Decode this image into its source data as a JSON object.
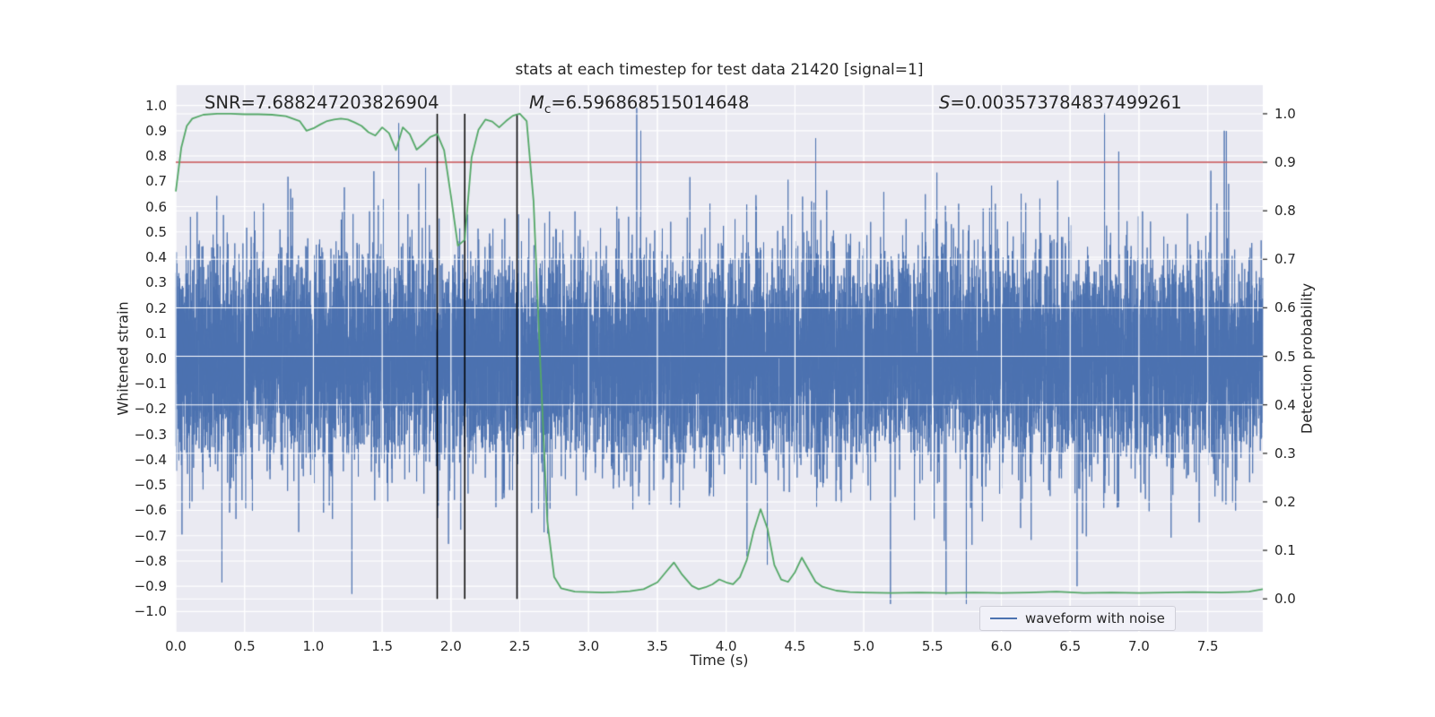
{
  "figure": {
    "annotations": {
      "snr": {
        "label": "SNR",
        "value": "=7.688247203826904"
      },
      "mc": {
        "label": "M",
        "sub": "c",
        "value": "=6.596868515014648"
      },
      "s": {
        "label": "S",
        "value": "=0.003573784837499261"
      }
    },
    "legend": {
      "items": [
        {
          "label": "waveform with noise",
          "color": "#4c72b0"
        }
      ]
    }
  },
  "chart_data": {
    "type": "line",
    "title": "stats at each timestep for test data 21420 [signal=1]",
    "xlabel": "Time (s)",
    "ylabel_left": "Whitened strain",
    "ylabel_right": "Detection probability",
    "xlim": [
      0,
      7.9
    ],
    "ylim_left": [
      -1.08,
      1.08
    ],
    "ylim_right": [
      -0.068,
      1.059
    ],
    "x_ticks": [
      0.0,
      0.5,
      1.0,
      1.5,
      2.0,
      2.5,
      3.0,
      3.5,
      4.0,
      4.5,
      5.0,
      5.5,
      6.0,
      6.5,
      7.0,
      7.5
    ],
    "y_ticks_left": [
      1.0,
      0.9,
      0.8,
      0.7,
      0.6,
      0.5,
      0.4,
      0.3,
      0.2,
      0.1,
      0.0,
      -0.1,
      -0.2,
      -0.3,
      -0.4,
      -0.5,
      -0.6,
      -0.7,
      -0.8,
      -0.9,
      -1.0
    ],
    "y_ticks_right": [
      1.0,
      0.9,
      0.8,
      0.7,
      0.6,
      0.5,
      0.4,
      0.3,
      0.2,
      0.1,
      0.0
    ],
    "grid": true,
    "plot_bg": "#eaeaf2",
    "grid_color": "#ffffff",
    "series": [
      {
        "name": "waveform with noise",
        "role": "noise",
        "axis": "left",
        "color": "#4c72b0",
        "line_width": 0.9,
        "n_points": 14000,
        "seed": 21420,
        "sigma_core": 0.19,
        "sigma_tail": 0.3,
        "tail_fraction": 0.08,
        "clip": 0.97,
        "notable_spikes": [
          [
            1.28,
            -0.93
          ],
          [
            1.62,
            0.93
          ],
          [
            3.35,
            0.99
          ],
          [
            3.38,
            0.9
          ],
          [
            6.55,
            -0.9
          ],
          [
            6.75,
            0.97
          ],
          [
            7.62,
            0.9
          ]
        ]
      },
      {
        "name": "detection probability",
        "role": "line",
        "axis": "right",
        "color": "#55a868",
        "line_width": 1.8,
        "points": [
          [
            0.0,
            0.84
          ],
          [
            0.04,
            0.93
          ],
          [
            0.08,
            0.975
          ],
          [
            0.12,
            0.99
          ],
          [
            0.2,
            0.998
          ],
          [
            0.3,
            1.0
          ],
          [
            0.4,
            1.0
          ],
          [
            0.5,
            0.999
          ],
          [
            0.6,
            0.999
          ],
          [
            0.7,
            0.998
          ],
          [
            0.8,
            0.995
          ],
          [
            0.9,
            0.985
          ],
          [
            0.95,
            0.965
          ],
          [
            1.0,
            0.97
          ],
          [
            1.05,
            0.978
          ],
          [
            1.1,
            0.985
          ],
          [
            1.15,
            0.988
          ],
          [
            1.2,
            0.99
          ],
          [
            1.25,
            0.988
          ],
          [
            1.3,
            0.982
          ],
          [
            1.35,
            0.975
          ],
          [
            1.4,
            0.962
          ],
          [
            1.45,
            0.955
          ],
          [
            1.5,
            0.972
          ],
          [
            1.55,
            0.96
          ],
          [
            1.6,
            0.925
          ],
          [
            1.65,
            0.972
          ],
          [
            1.7,
            0.958
          ],
          [
            1.75,
            0.926
          ],
          [
            1.8,
            0.938
          ],
          [
            1.85,
            0.952
          ],
          [
            1.9,
            0.958
          ],
          [
            1.95,
            0.925
          ],
          [
            2.0,
            0.83
          ],
          [
            2.05,
            0.728
          ],
          [
            2.1,
            0.74
          ],
          [
            2.15,
            0.91
          ],
          [
            2.2,
            0.967
          ],
          [
            2.25,
            0.988
          ],
          [
            2.3,
            0.984
          ],
          [
            2.35,
            0.972
          ],
          [
            2.4,
            0.985
          ],
          [
            2.45,
            0.996
          ],
          [
            2.5,
            1.0
          ],
          [
            2.55,
            0.985
          ],
          [
            2.6,
            0.82
          ],
          [
            2.65,
            0.48
          ],
          [
            2.7,
            0.16
          ],
          [
            2.75,
            0.045
          ],
          [
            2.8,
            0.022
          ],
          [
            2.9,
            0.015
          ],
          [
            3.0,
            0.014
          ],
          [
            3.1,
            0.013
          ],
          [
            3.2,
            0.014
          ],
          [
            3.3,
            0.016
          ],
          [
            3.4,
            0.02
          ],
          [
            3.5,
            0.034
          ],
          [
            3.57,
            0.058
          ],
          [
            3.62,
            0.075
          ],
          [
            3.68,
            0.05
          ],
          [
            3.75,
            0.027
          ],
          [
            3.8,
            0.02
          ],
          [
            3.85,
            0.024
          ],
          [
            3.9,
            0.03
          ],
          [
            3.95,
            0.04
          ],
          [
            4.0,
            0.034
          ],
          [
            4.05,
            0.03
          ],
          [
            4.1,
            0.045
          ],
          [
            4.15,
            0.08
          ],
          [
            4.2,
            0.14
          ],
          [
            4.25,
            0.185
          ],
          [
            4.3,
            0.145
          ],
          [
            4.35,
            0.07
          ],
          [
            4.4,
            0.04
          ],
          [
            4.45,
            0.035
          ],
          [
            4.5,
            0.055
          ],
          [
            4.55,
            0.085
          ],
          [
            4.6,
            0.06
          ],
          [
            4.65,
            0.035
          ],
          [
            4.7,
            0.025
          ],
          [
            4.8,
            0.017
          ],
          [
            4.9,
            0.014
          ],
          [
            5.0,
            0.013
          ],
          [
            5.2,
            0.012
          ],
          [
            5.4,
            0.013
          ],
          [
            5.6,
            0.012
          ],
          [
            5.8,
            0.013
          ],
          [
            6.0,
            0.012
          ],
          [
            6.2,
            0.013
          ],
          [
            6.4,
            0.015
          ],
          [
            6.6,
            0.012
          ],
          [
            6.8,
            0.013
          ],
          [
            7.0,
            0.012
          ],
          [
            7.2,
            0.013
          ],
          [
            7.4,
            0.014
          ],
          [
            7.6,
            0.013
          ],
          [
            7.8,
            0.015
          ],
          [
            7.9,
            0.02
          ]
        ]
      }
    ],
    "hline": {
      "y": 0.9,
      "axis": "right",
      "color": "#c44e52",
      "line_width": 1.4
    },
    "vlines": {
      "x": [
        1.9,
        2.1,
        2.48
      ],
      "ymin": 0,
      "ymax": 1,
      "axis": "right",
      "color": "#000000",
      "line_width": 1.5
    }
  }
}
